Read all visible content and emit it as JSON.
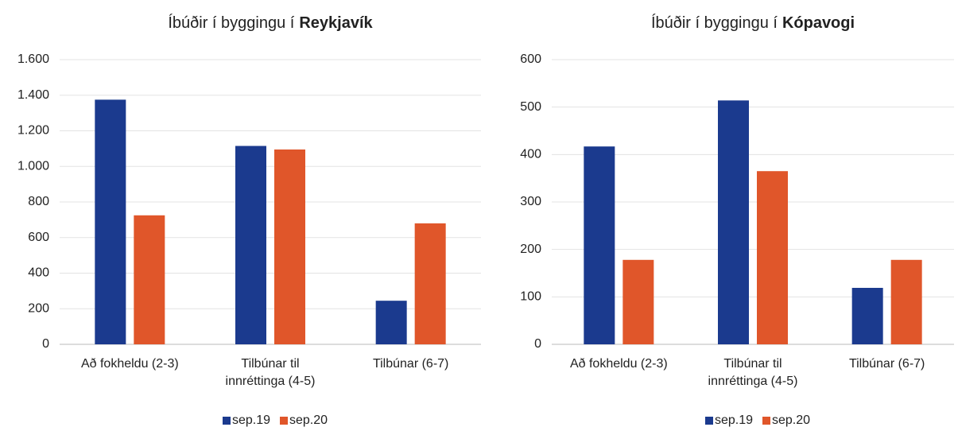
{
  "chart_data": [
    {
      "type": "bar",
      "title": "Íbúðir í byggingu í",
      "title_bold": "Reykjavík",
      "categories": [
        "Að fokheldu (2-3)",
        "Tilbúnar til innréttinga (4-5)",
        "Tilbúnar (6-7)"
      ],
      "series": [
        {
          "name": "sep.19",
          "color": "#1b3a8e",
          "values": [
            1375,
            1115,
            245
          ]
        },
        {
          "name": "sep.20",
          "color": "#e0562a",
          "values": [
            725,
            1095,
            680
          ]
        }
      ],
      "ylim": [
        0,
        1600
      ],
      "yticks": [
        0,
        200,
        400,
        600,
        800,
        {
          "value": 1000,
          "label": "1.000"
        },
        {
          "value": 1200,
          "label": "1.200"
        },
        {
          "value": 1400,
          "label": "1.400"
        },
        {
          "value": 1600,
          "label": "1.600"
        }
      ],
      "grid": true,
      "legend": "bottom"
    },
    {
      "type": "bar",
      "title": "Íbúðir í byggingu í",
      "title_bold": "Kópavogi",
      "categories": [
        "Að fokheldu (2-3)",
        "Tilbúnar til innréttinga (4-5)",
        "Tilbúnar (6-7)"
      ],
      "series": [
        {
          "name": "sep.19",
          "color": "#1b3a8e",
          "values": [
            417,
            514,
            119
          ]
        },
        {
          "name": "sep.20",
          "color": "#e0562a",
          "values": [
            178,
            365,
            178
          ]
        }
      ],
      "ylim": [
        0,
        600
      ],
      "yticks": [
        0,
        100,
        200,
        300,
        400,
        500,
        600
      ],
      "grid": true,
      "legend": "bottom"
    }
  ]
}
